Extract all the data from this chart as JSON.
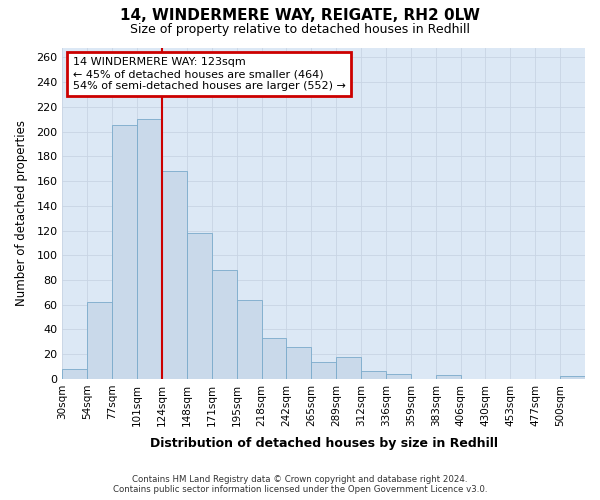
{
  "title": "14, WINDERMERE WAY, REIGATE, RH2 0LW",
  "subtitle": "Size of property relative to detached houses in Redhill",
  "xlabel": "Distribution of detached houses by size in Redhill",
  "ylabel": "Number of detached properties",
  "footer_line1": "Contains HM Land Registry data © Crown copyright and database right 2024.",
  "footer_line2": "Contains public sector information licensed under the Open Government Licence v3.0.",
  "categories": [
    "30sqm",
    "54sqm",
    "77sqm",
    "101sqm",
    "124sqm",
    "148sqm",
    "171sqm",
    "195sqm",
    "218sqm",
    "242sqm",
    "265sqm",
    "289sqm",
    "312sqm",
    "336sqm",
    "359sqm",
    "383sqm",
    "406sqm",
    "430sqm",
    "453sqm",
    "477sqm",
    "500sqm"
  ],
  "values": [
    8,
    62,
    205,
    210,
    168,
    118,
    88,
    64,
    33,
    26,
    14,
    18,
    6,
    4,
    0,
    3,
    0,
    0,
    0,
    0,
    2
  ],
  "bar_color": "#c9d9ea",
  "bar_edge_color": "#7aaacb",
  "grid_color": "#c8d4e4",
  "annotation_box_color": "#cc0000",
  "property_line_color": "#cc0000",
  "property_bin_index": 4,
  "annotation_text": "14 WINDERMERE WAY: 123sqm\n← 45% of detached houses are smaller (464)\n54% of semi-detached houses are larger (552) →",
  "ylim": [
    0,
    268
  ],
  "yticks": [
    0,
    20,
    40,
    60,
    80,
    100,
    120,
    140,
    160,
    180,
    200,
    220,
    240,
    260
  ],
  "fig_background_color": "#ffffff",
  "plot_background": "#dce8f5"
}
